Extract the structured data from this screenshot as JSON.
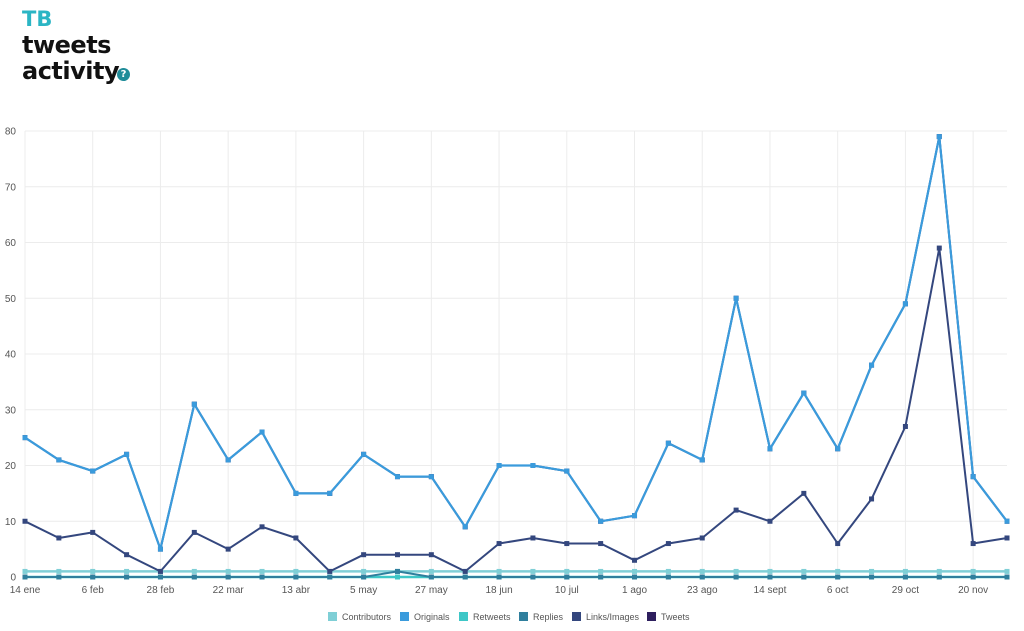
{
  "header": {
    "logo_text": "TB",
    "title_line1": "tweets",
    "title_line2": "activity",
    "help_label": "?"
  },
  "chart_data": {
    "type": "line",
    "title": "",
    "xlabel": "",
    "ylabel": "",
    "ylim": [
      0,
      80
    ],
    "yticks": [
      0,
      10,
      20,
      30,
      40,
      50,
      60,
      70,
      80
    ],
    "grid": true,
    "legend_position": "bottom",
    "x_tick_labels": [
      "14 ene",
      "6 feb",
      "28 feb",
      "22 mar",
      "13 abr",
      "5 may",
      "27 may",
      "18 jun",
      "10 jul",
      "1 ago",
      "23 ago",
      "14 sept",
      "6 oct",
      "29 oct",
      "20 nov"
    ],
    "series": [
      {
        "name": "Contributors",
        "color": "#7fcfd6",
        "values": [
          1,
          1,
          1,
          1,
          1,
          1,
          1,
          1,
          1,
          1,
          1,
          1,
          1,
          1,
          1,
          1,
          1,
          1,
          1,
          1,
          1,
          1,
          1,
          1,
          1,
          1,
          1,
          1,
          1,
          1
        ]
      },
      {
        "name": "Originals",
        "color": "#3a9bdc",
        "values": [
          25,
          21,
          19,
          22,
          5,
          31,
          21,
          26,
          15,
          15,
          22,
          18,
          18,
          9,
          20,
          20,
          19,
          10,
          11,
          24,
          21,
          50,
          23,
          33,
          23,
          38,
          49,
          79,
          18,
          10
        ]
      },
      {
        "name": "Retweets",
        "color": "#3ec7c7",
        "values": [
          0,
          0,
          0,
          0,
          0,
          0,
          0,
          0,
          0,
          0,
          0,
          0,
          0,
          0,
          0,
          0,
          0,
          0,
          0,
          0,
          0,
          0,
          0,
          0,
          0,
          0,
          0,
          0,
          0,
          0
        ]
      },
      {
        "name": "Replies",
        "color": "#2f7f9d",
        "values": [
          0,
          0,
          0,
          0,
          0,
          0,
          0,
          0,
          0,
          0,
          0,
          1,
          0,
          0,
          0,
          0,
          0,
          0,
          0,
          0,
          0,
          0,
          0,
          0,
          0,
          0,
          0,
          0,
          0,
          0
        ]
      },
      {
        "name": "Links/Images",
        "color": "#34477e",
        "values": [
          10,
          7,
          8,
          4,
          1,
          8,
          5,
          9,
          7,
          1,
          4,
          4,
          4,
          1,
          6,
          7,
          6,
          6,
          3,
          6,
          7,
          12,
          10,
          15,
          6,
          14,
          27,
          59,
          6,
          7
        ]
      },
      {
        "name": "Tweets",
        "color": "#2e1f5e",
        "values": [
          25,
          21,
          19,
          22,
          5,
          31,
          21,
          26,
          15,
          15,
          22,
          18,
          18,
          9,
          20,
          20,
          19,
          10,
          11,
          24,
          21,
          50,
          23,
          33,
          23,
          38,
          49,
          79,
          18,
          10
        ]
      }
    ]
  }
}
